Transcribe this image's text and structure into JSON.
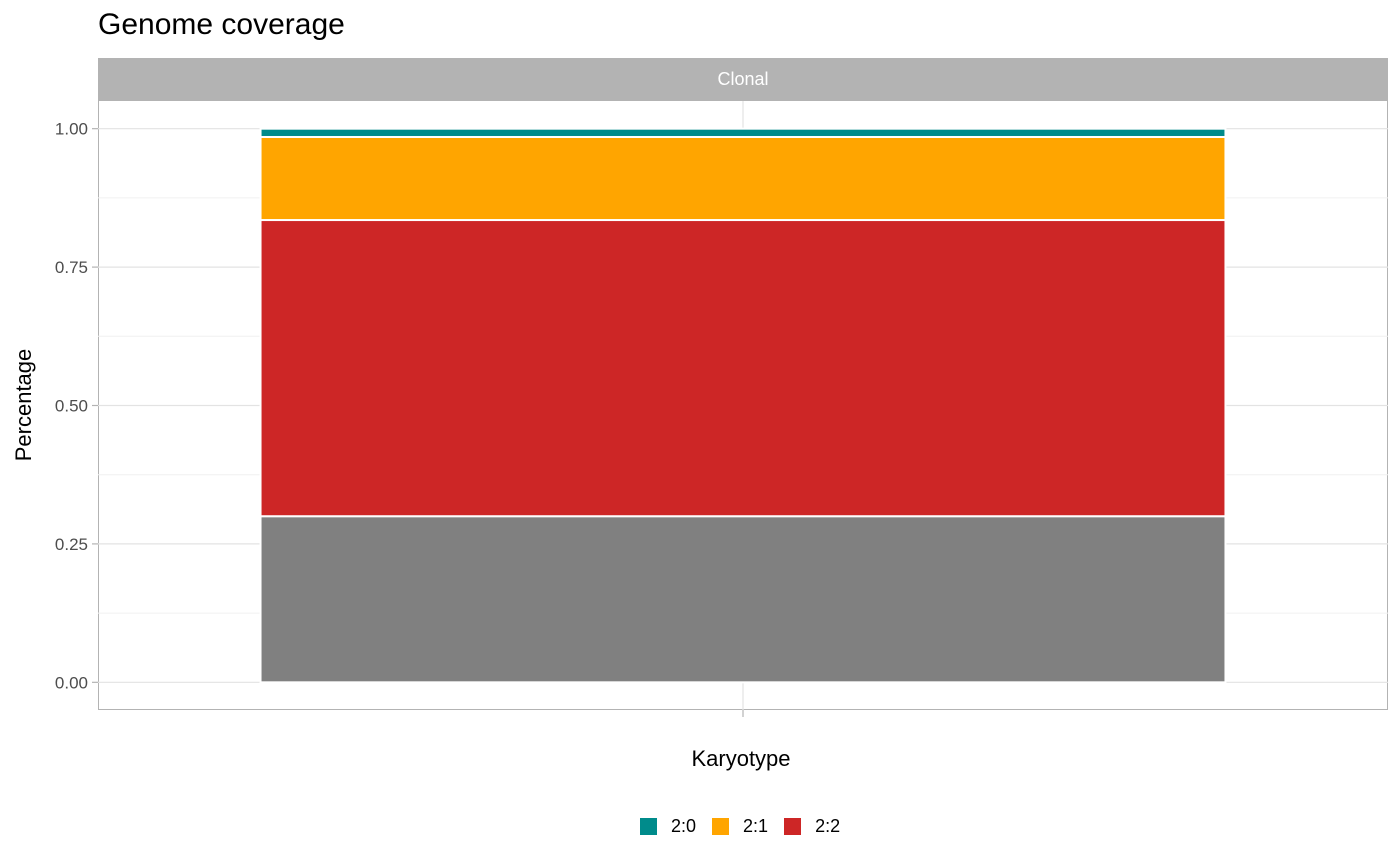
{
  "chart_data": {
    "type": "bar",
    "stacked": true,
    "title": "Genome coverage",
    "facet": "Clonal",
    "xlabel": "Karyotype",
    "ylabel": "Percentage",
    "ylim": [
      -0.05,
      1.05
    ],
    "yticks": [
      "0.00",
      "0.25",
      "0.50",
      "0.75",
      "1.00"
    ],
    "categories": [
      ""
    ],
    "grid": true,
    "legend_position": "bottom",
    "series": [
      {
        "key": "other",
        "values": [
          0.3
        ],
        "color": "#808080"
      },
      {
        "key": "2:2",
        "name": "2:2",
        "values": [
          0.535
        ],
        "color": "#CD2626"
      },
      {
        "key": "2:1",
        "name": "2:1",
        "values": [
          0.15
        ],
        "color": "#FFA500"
      },
      {
        "key": "2:0",
        "name": "2:0",
        "values": [
          0.015
        ],
        "color": "#008B8B"
      }
    ],
    "legend": [
      {
        "label": "2:0",
        "color": "#008B8B"
      },
      {
        "label": "2:1",
        "color": "#FFA500"
      },
      {
        "label": "2:2",
        "color": "#CD2626"
      }
    ]
  }
}
